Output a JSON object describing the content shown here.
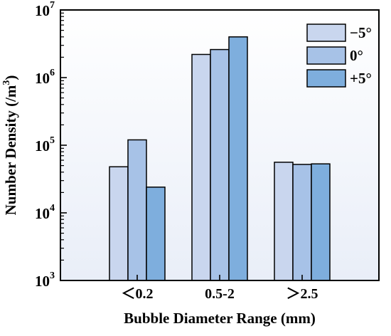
{
  "chart_data": {
    "type": "bar",
    "title": "",
    "xlabel": "Bubble Diameter Range (mm)",
    "ylabel_main": "Number Density (/m",
    "ylabel_sup": "3",
    "ylabel_close": ")",
    "y_scale": "log",
    "ylim": [
      1000,
      10000000
    ],
    "y_ticks": [
      {
        "value": 1000,
        "base": "10",
        "exp": "3"
      },
      {
        "value": 10000,
        "base": "10",
        "exp": "4"
      },
      {
        "value": 100000,
        "base": "10",
        "exp": "5"
      },
      {
        "value": 1000000,
        "base": "10",
        "exp": "6"
      },
      {
        "value": 10000000,
        "base": "10",
        "exp": "7"
      }
    ],
    "categories": [
      "＜0.2",
      "0.5-2",
      "＞2.5"
    ],
    "series": [
      {
        "name": "−5°",
        "color": "#c9d6ee",
        "values": [
          48000,
          2200000,
          56000
        ]
      },
      {
        "name": "0°",
        "color": "#a7c2e7",
        "values": [
          120000,
          2600000,
          52000
        ]
      },
      {
        "name": "+5°",
        "color": "#7eaedd",
        "values": [
          24000,
          4000000,
          53000
        ]
      }
    ],
    "plot_background": "#f0f3fa",
    "grid": false,
    "legend_position": "top-right"
  }
}
